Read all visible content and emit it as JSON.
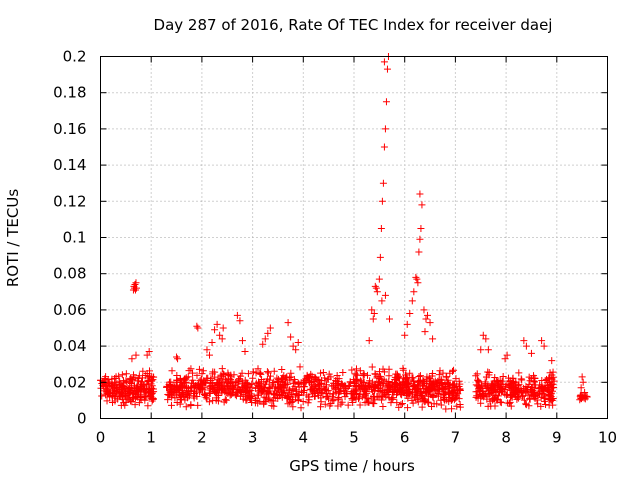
{
  "chart_data": {
    "type": "scatter",
    "title": "Day 287 of 2016, Rate Of TEC Index for receiver daej",
    "xlabel": "GPS time / hours",
    "ylabel": "ROTI / TECUs",
    "xlim": [
      0,
      10
    ],
    "ylim": [
      0,
      0.2
    ],
    "grid": true,
    "marker": "+",
    "color": "#ff0000",
    "x_ticks": [
      {
        "value": 0,
        "label": "0"
      },
      {
        "value": 1,
        "label": "1"
      },
      {
        "value": 2,
        "label": "2"
      },
      {
        "value": 3,
        "label": "3"
      },
      {
        "value": 4,
        "label": "4"
      },
      {
        "value": 5,
        "label": "5"
      },
      {
        "value": 6,
        "label": "6"
      },
      {
        "value": 7,
        "label": "7"
      },
      {
        "value": 8,
        "label": "8"
      },
      {
        "value": 9,
        "label": "9"
      },
      {
        "value": 10,
        "label": "10"
      }
    ],
    "y_ticks": [
      {
        "value": 0,
        "label": "0"
      },
      {
        "value": 0.02,
        "label": "0.02"
      },
      {
        "value": 0.04,
        "label": "0.04"
      },
      {
        "value": 0.06,
        "label": "0.06"
      },
      {
        "value": 0.08,
        "label": "0.08"
      },
      {
        "value": 0.1,
        "label": "0.1"
      },
      {
        "value": 0.12,
        "label": "0.12"
      },
      {
        "value": 0.14,
        "label": "0.14"
      },
      {
        "value": 0.16,
        "label": "0.16"
      },
      {
        "value": 0.18,
        "label": "0.18"
      },
      {
        "value": 0.2,
        "label": "0.2"
      }
    ],
    "series": [
      {
        "name": "ROTI",
        "segments": [
          {
            "x_start": 0.0,
            "x_end": 1.05,
            "y_min": 0.004,
            "y_max": 0.028,
            "n": 240
          },
          {
            "x_start": 1.3,
            "x_end": 4.95,
            "y_min": 0.004,
            "y_max": 0.03,
            "n": 620
          },
          {
            "x_start": 4.95,
            "x_end": 7.1,
            "y_min": 0.003,
            "y_max": 0.03,
            "n": 460
          },
          {
            "x_start": 7.4,
            "x_end": 8.95,
            "y_min": 0.004,
            "y_max": 0.028,
            "n": 300
          },
          {
            "x_start": 9.45,
            "x_end": 9.6,
            "y_min": 0.01,
            "y_max": 0.015,
            "n": 18
          }
        ],
        "points": [
          [
            0.65,
            0.071
          ],
          [
            0.66,
            0.073
          ],
          [
            0.67,
            0.072
          ],
          [
            0.68,
            0.074
          ],
          [
            0.69,
            0.071
          ],
          [
            0.7,
            0.075
          ],
          [
            0.71,
            0.072
          ],
          [
            0.62,
            0.033
          ],
          [
            0.7,
            0.035
          ],
          [
            0.92,
            0.035
          ],
          [
            0.96,
            0.037
          ],
          [
            1.5,
            0.034
          ],
          [
            1.52,
            0.033
          ],
          [
            1.9,
            0.051
          ],
          [
            1.92,
            0.05
          ],
          [
            2.1,
            0.038
          ],
          [
            2.15,
            0.035
          ],
          [
            2.2,
            0.042
          ],
          [
            2.25,
            0.049
          ],
          [
            2.3,
            0.052
          ],
          [
            2.35,
            0.046
          ],
          [
            2.4,
            0.044
          ],
          [
            2.42,
            0.05
          ],
          [
            2.7,
            0.057
          ],
          [
            2.75,
            0.054
          ],
          [
            2.8,
            0.043
          ],
          [
            2.85,
            0.037
          ],
          [
            3.2,
            0.041
          ],
          [
            3.25,
            0.044
          ],
          [
            3.3,
            0.047
          ],
          [
            3.35,
            0.05
          ],
          [
            3.7,
            0.053
          ],
          [
            3.75,
            0.045
          ],
          [
            3.8,
            0.04
          ],
          [
            3.85,
            0.038
          ],
          [
            3.9,
            0.042
          ],
          [
            5.3,
            0.043
          ],
          [
            5.35,
            0.06
          ],
          [
            5.38,
            0.055
          ],
          [
            5.4,
            0.058
          ],
          [
            5.42,
            0.073
          ],
          [
            5.44,
            0.072
          ],
          [
            5.46,
            0.07
          ],
          [
            5.5,
            0.077
          ],
          [
            5.52,
            0.089
          ],
          [
            5.54,
            0.105
          ],
          [
            5.56,
            0.12
          ],
          [
            5.58,
            0.13
          ],
          [
            5.6,
            0.15
          ],
          [
            5.62,
            0.16
          ],
          [
            5.64,
            0.175
          ],
          [
            5.66,
            0.193
          ],
          [
            5.6,
            0.197
          ],
          [
            5.68,
            0.2
          ],
          [
            5.55,
            0.065
          ],
          [
            5.62,
            0.068
          ],
          [
            5.7,
            0.055
          ],
          [
            6.0,
            0.046
          ],
          [
            6.05,
            0.052
          ],
          [
            6.1,
            0.058
          ],
          [
            6.15,
            0.065
          ],
          [
            6.18,
            0.07
          ],
          [
            6.22,
            0.078
          ],
          [
            6.24,
            0.077
          ],
          [
            6.26,
            0.075
          ],
          [
            6.28,
            0.092
          ],
          [
            6.3,
            0.099
          ],
          [
            6.32,
            0.105
          ],
          [
            6.34,
            0.118
          ],
          [
            6.3,
            0.124
          ],
          [
            6.38,
            0.06
          ],
          [
            6.42,
            0.055
          ],
          [
            6.45,
            0.057
          ],
          [
            6.5,
            0.053
          ],
          [
            6.4,
            0.048
          ],
          [
            6.55,
            0.044
          ],
          [
            7.55,
            0.046
          ],
          [
            7.6,
            0.044
          ],
          [
            7.65,
            0.038
          ],
          [
            7.5,
            0.038
          ],
          [
            7.98,
            0.033
          ],
          [
            8.02,
            0.035
          ],
          [
            8.35,
            0.043
          ],
          [
            8.4,
            0.04
          ],
          [
            8.7,
            0.043
          ],
          [
            8.75,
            0.04
          ],
          [
            8.5,
            0.036
          ],
          [
            8.9,
            0.032
          ],
          [
            9.5,
            0.023
          ],
          [
            9.52,
            0.02
          ],
          [
            9.48,
            0.017
          ]
        ]
      }
    ]
  }
}
